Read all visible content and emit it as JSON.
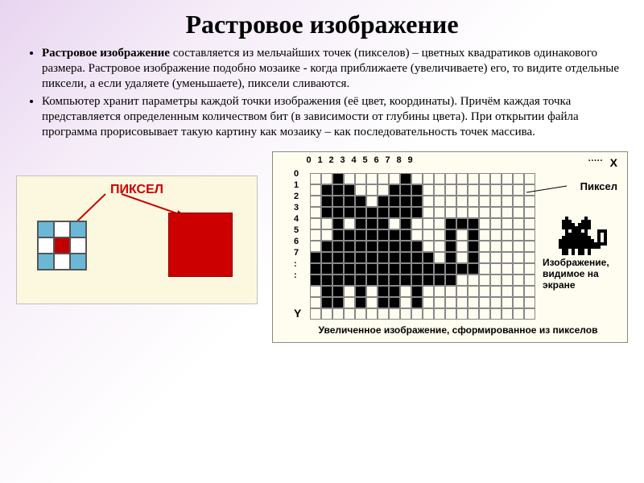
{
  "title": "Растровое изображение",
  "bullets": [
    {
      "bold": "Растровое изображение",
      "rest": " составляется из мельчайших  точек (пикселов) – цветных квадратиков одинакового размера. Растровое изображение подобно мозаике - когда приближаете (увеличиваете) его, то видите отдельные пиксели, а если удаляете (уменьшаете), пиксели сливаются."
    },
    {
      "bold": "",
      "rest": "Компьютер хранит параметры каждой точки  изображения (её цвет, координаты). Причём  каждая точка представляется определенным количеством бит (в зависимости от глубины цвета). При открытии файла программа прорисовывает такую картину как мозаику – как последовательность точек массива."
    }
  ],
  "fig_left": {
    "label": "ПИКСЕЛ",
    "bg": "#fcf8e0",
    "grid_colors": [
      "#6bb8d6",
      "#ffffff",
      "#6bb8d6",
      "#ffffff",
      "#c00000",
      "#ffffff",
      "#6bb8d6",
      "#ffffff",
      "#6bb8d6"
    ],
    "red": "#c00000"
  },
  "fig_right": {
    "x_nums": [
      "0",
      "1",
      "2",
      "3",
      "4",
      "5",
      "6",
      "7",
      "8",
      "9"
    ],
    "x_dots": "·····",
    "x_letter": "X",
    "y_nums": [
      "0",
      "1",
      "2",
      "3",
      "4",
      "5",
      "6",
      "7",
      ":",
      ":"
    ],
    "y_letter": "Y",
    "pixel_label": "Пиксел",
    "screen_label": "Изображение, видимое на экране",
    "caption": "Увеличенное изображение, сформированное из пикселов",
    "cat_grid": [
      "..f.....f......",
      ".fff...fff.....",
      ".ffff.ffff.....",
      ".fffffffff.....",
      "..f.fff.f...fff",
      "..fffffff...f.f",
      ".fffffffff..f.f",
      "fffffffffff.f.f",
      "fffffffffffffff",
      "fffffffffffff..",
      ".ff.f.ff.f.....",
      ".ff.f.ff.f....."
    ]
  },
  "colors": {
    "accent": "#c00000",
    "grid_border": "#888888"
  }
}
